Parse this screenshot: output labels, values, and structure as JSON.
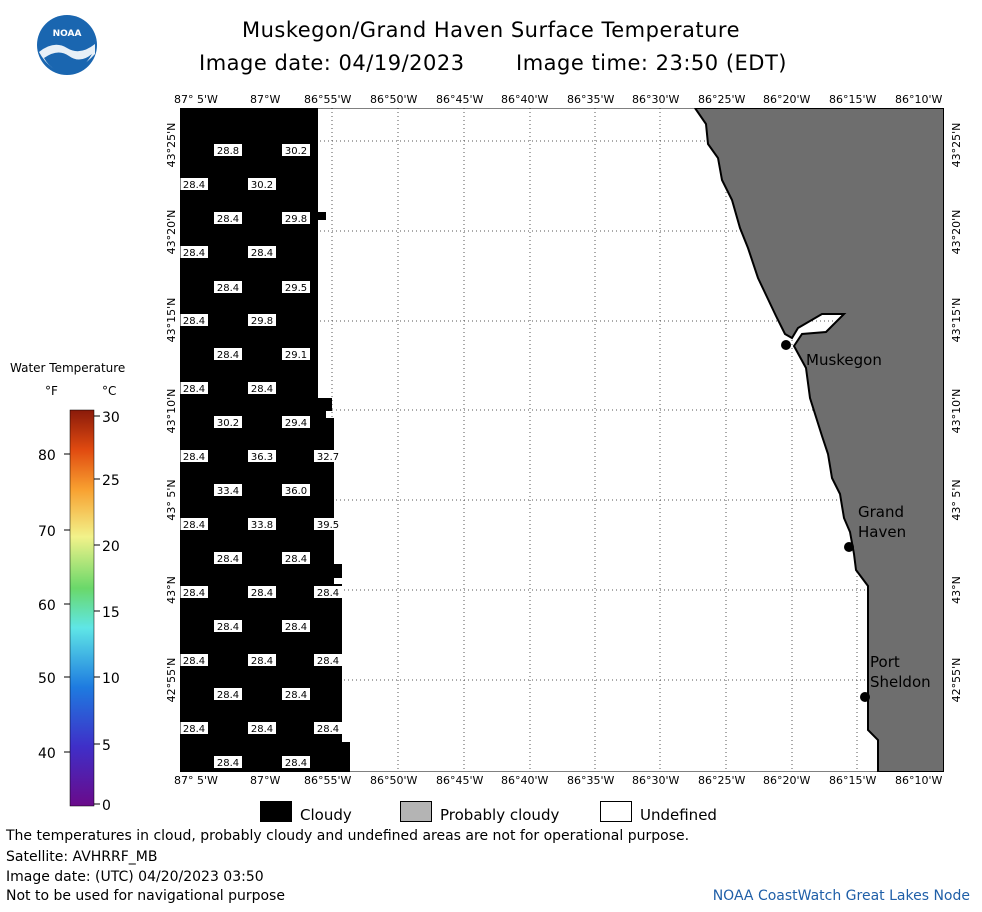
{
  "header": {
    "title": "Muskegon/Grand Haven Surface Temperature",
    "image_date": "Image date: 04/19/2023",
    "image_time": "Image time: 23:50 (EDT)",
    "logo_text": "NOAA"
  },
  "axes": {
    "lon_labels": [
      "87° 5'W",
      "87°W",
      "86°55'W",
      "86°50'W",
      "86°45'W",
      "86°40'W",
      "86°35'W",
      "86°30'W",
      "86°25'W",
      "86°20'W",
      "86°15'W",
      "86°10'W"
    ],
    "lat_labels": [
      "43°25'N",
      "43°20'N",
      "43°15'N",
      "43°10'N",
      "43° 5'N",
      "43°N",
      "42°55'N"
    ]
  },
  "map": {
    "cities": [
      {
        "name_lines": [
          "Muskegon"
        ]
      },
      {
        "name_lines": [
          "Grand",
          "Haven"
        ]
      },
      {
        "name_lines": [
          "Port",
          "Sheldon"
        ]
      }
    ],
    "temperature_labels": [
      "28.8",
      "30.2",
      "28.4",
      "30.2",
      "28.4",
      "29.8",
      "28.4",
      "28.4",
      "28.4",
      "29.5",
      "28.4",
      "29.8",
      "28.4",
      "29.1",
      "28.4",
      "28.4",
      "30.2",
      "29.4",
      "28.4",
      "36.3",
      "32.7",
      "33.4",
      "36.0",
      "28.4",
      "33.8",
      "39.5",
      "28.4",
      "28.4",
      "28.4",
      "28.4",
      "28.4",
      "28.4",
      "28.4",
      "28.4",
      "28.4",
      "28.4",
      "28.4",
      "28.4",
      "28.4",
      "28.4",
      "28.4",
      "28.4",
      "28.4",
      "28.4",
      "28.4"
    ]
  },
  "legend": {
    "title": "Water Temperature",
    "unit_f": "°F",
    "unit_c": "°C",
    "f_ticks": [
      "80",
      "70",
      "60",
      "50",
      "40"
    ],
    "c_ticks": [
      "30",
      "25",
      "20",
      "15",
      "10",
      "5",
      "0"
    ],
    "keys": [
      {
        "label": "Cloudy",
        "color": "#000000"
      },
      {
        "label": "Probably cloudy",
        "color": "#b4b4b4"
      },
      {
        "label": "Undefined",
        "color": "#ffffff"
      }
    ],
    "land_color": "#6e6e6e"
  },
  "footer": {
    "line1": "The temperatures in cloud, probably cloudy and undefined areas are not for operational purpose.",
    "line2": "Satellite: AVHRRF_MB",
    "line3": "Image date: (UTC) 04/20/2023  03:50",
    "line4": "Not to be used for navigational purpose",
    "node": "NOAA CoastWatch Great Lakes Node"
  }
}
